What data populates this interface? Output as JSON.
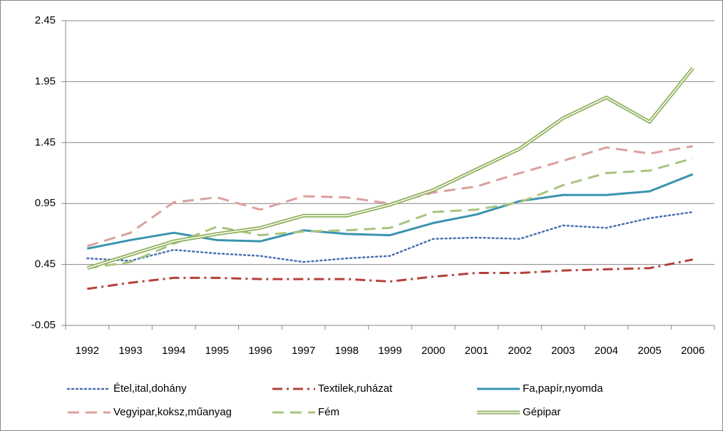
{
  "chart_data": {
    "type": "line",
    "categories": [
      "1992",
      "1993",
      "1994",
      "1995",
      "1996",
      "1997",
      "1998",
      "1999",
      "2000",
      "2001",
      "2002",
      "2003",
      "2004",
      "2005",
      "2006"
    ],
    "ylim": [
      -0.05,
      2.45
    ],
    "yticks": [
      -0.05,
      0.45,
      0.95,
      1.45,
      1.95,
      2.45
    ],
    "grid": true,
    "series": [
      {
        "name": "Étel,ital,dohány",
        "color": "#4a6fb0",
        "style": "dotted",
        "values": [
          0.5,
          0.48,
          0.57,
          0.54,
          0.52,
          0.47,
          0.5,
          0.52,
          0.66,
          0.67,
          0.66,
          0.77,
          0.75,
          0.83,
          0.88
        ]
      },
      {
        "name": "Textilek,ruházat",
        "color": "#b5403b",
        "style": "dashdot",
        "values": [
          0.25,
          0.3,
          0.34,
          0.34,
          0.33,
          0.33,
          0.33,
          0.31,
          0.35,
          0.38,
          0.38,
          0.4,
          0.41,
          0.42,
          0.49
        ]
      },
      {
        "name": "Fa,papír,nyomda",
        "color": "#3a93ae",
        "style": "solid",
        "values": [
          0.58,
          0.65,
          0.71,
          0.65,
          0.64,
          0.73,
          0.7,
          0.69,
          0.79,
          0.86,
          0.97,
          1.02,
          1.02,
          1.05,
          1.19
        ]
      },
      {
        "name": "Vegyipar,koksz,műanyag",
        "color": "#dca09e",
        "style": "dashed",
        "values": [
          0.6,
          0.71,
          0.96,
          1.0,
          0.9,
          1.01,
          1.0,
          0.95,
          1.04,
          1.09,
          1.2,
          1.3,
          1.41,
          1.36,
          1.42
        ]
      },
      {
        "name": "Fém",
        "color": "#a9c47f",
        "style": "dashed",
        "values": [
          0.42,
          0.47,
          0.62,
          0.76,
          0.69,
          0.72,
          0.73,
          0.75,
          0.88,
          0.9,
          0.96,
          1.1,
          1.2,
          1.22,
          1.32
        ]
      },
      {
        "name": "Gépipar",
        "color": "#8fb05b",
        "style": "double",
        "values": [
          0.42,
          0.53,
          0.64,
          0.7,
          0.75,
          0.85,
          0.85,
          0.94,
          1.06,
          1.23,
          1.4,
          1.65,
          1.82,
          1.62,
          2.06
        ]
      }
    ]
  }
}
